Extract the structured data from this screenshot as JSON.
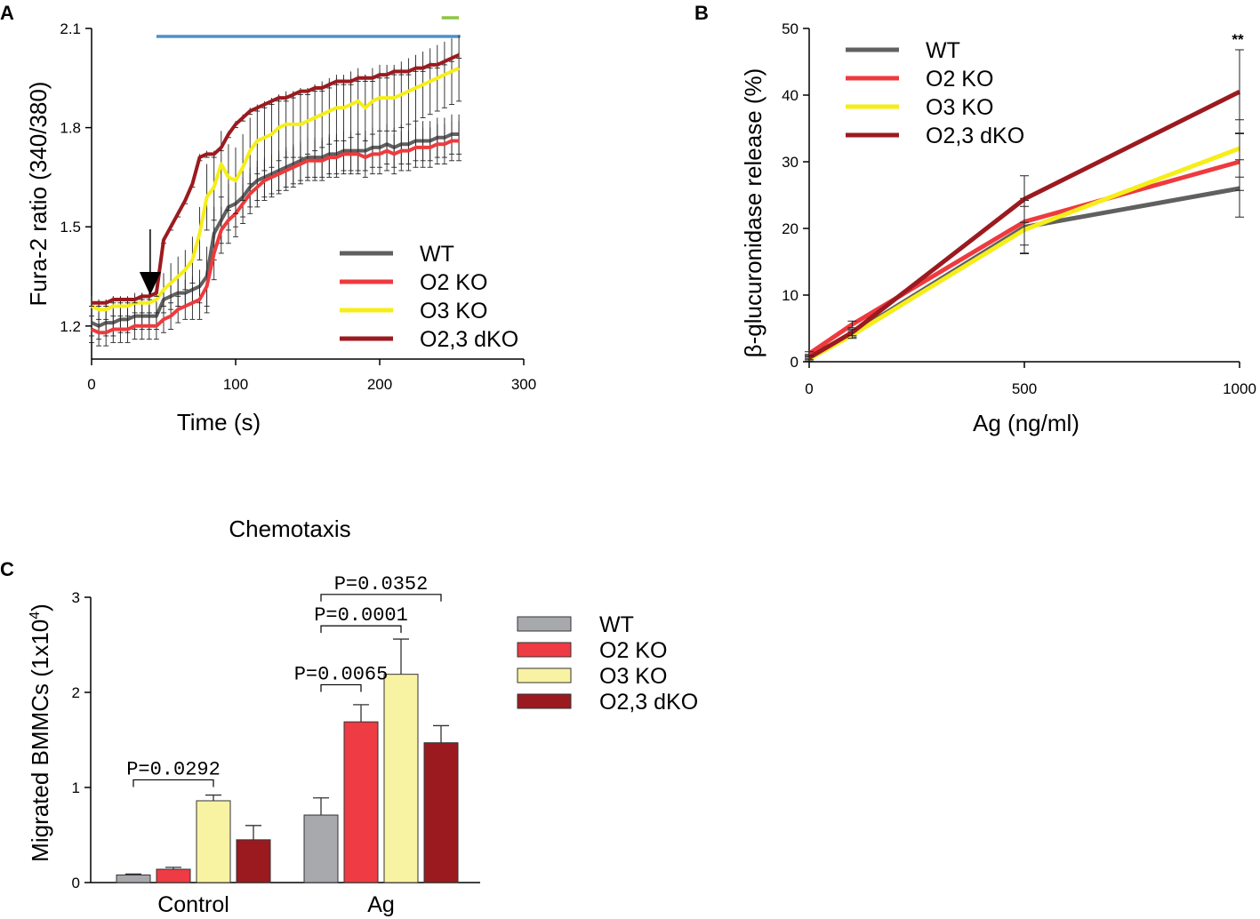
{
  "colors": {
    "wt_line": "#606060",
    "o2_line": "#ee3a3e",
    "o3_line": "#f5ee1a",
    "dko_line": "#9b1a1f",
    "wt_bar": "#a7a9ac",
    "o2_bar": "#ef3b44",
    "o3_bar": "#f8f2a3",
    "dko_bar": "#9b1a1f",
    "blue_bar": "#4e8fcf",
    "green_bar": "#8dc640"
  },
  "chart_data": [
    {
      "panel": "A",
      "type": "line",
      "xlabel": "Time (s)",
      "ylabel": "Fura-2 ratio (340/380)",
      "xlim": [
        0,
        300
      ],
      "ylim": [
        1.1,
        2.1
      ],
      "xticks": [
        "0",
        "100",
        "200",
        "300"
      ],
      "yticks": [
        "1.2",
        "1.5",
        "1.8",
        "2.1"
      ],
      "ytick_values": [
        1.2,
        1.5,
        1.8,
        2.1
      ],
      "xtick_values": [
        0,
        100,
        200,
        300
      ],
      "stimulus_time": 45,
      "blue_bar_range": [
        45,
        256
      ],
      "green_bar_range": [
        243,
        255
      ],
      "legend": [
        "WT",
        "O2 KO",
        "O3 KO",
        "O2,3 dKO"
      ],
      "x": [
        0,
        5,
        10,
        15,
        20,
        25,
        30,
        35,
        40,
        45,
        50,
        55,
        60,
        65,
        70,
        75,
        80,
        85,
        90,
        95,
        100,
        105,
        110,
        115,
        120,
        125,
        130,
        135,
        140,
        145,
        150,
        155,
        160,
        165,
        170,
        175,
        180,
        185,
        190,
        195,
        200,
        205,
        210,
        215,
        220,
        225,
        230,
        235,
        240,
        245,
        250,
        255
      ],
      "series": [
        {
          "name": "WT",
          "values": [
            1.21,
            1.2,
            1.21,
            1.21,
            1.22,
            1.22,
            1.23,
            1.23,
            1.23,
            1.23,
            1.28,
            1.29,
            1.3,
            1.3,
            1.31,
            1.32,
            1.35,
            1.48,
            1.52,
            1.56,
            1.57,
            1.59,
            1.62,
            1.64,
            1.65,
            1.66,
            1.67,
            1.68,
            1.69,
            1.7,
            1.71,
            1.71,
            1.71,
            1.72,
            1.72,
            1.73,
            1.73,
            1.73,
            1.73,
            1.74,
            1.74,
            1.75,
            1.74,
            1.75,
            1.75,
            1.76,
            1.76,
            1.76,
            1.77,
            1.77,
            1.78,
            1.78
          ],
          "errors": [
            0.04,
            0.04,
            0.04,
            0.04,
            0.04,
            0.04,
            0.04,
            0.04,
            0.04,
            0.04,
            0.04,
            0.04,
            0.04,
            0.04,
            0.04,
            0.05,
            0.09,
            0.08,
            0.07,
            0.07,
            0.07,
            0.06,
            0.06,
            0.06,
            0.06,
            0.06,
            0.06,
            0.06,
            0.06,
            0.06,
            0.06,
            0.06,
            0.06,
            0.06,
            0.06,
            0.06,
            0.06,
            0.06,
            0.06,
            0.06,
            0.06,
            0.06,
            0.06,
            0.06,
            0.06,
            0.06,
            0.06,
            0.06,
            0.06,
            0.06,
            0.06,
            0.06
          ]
        },
        {
          "name": "O2 KO",
          "values": [
            1.19,
            1.18,
            1.18,
            1.19,
            1.19,
            1.19,
            1.2,
            1.2,
            1.2,
            1.2,
            1.22,
            1.23,
            1.25,
            1.26,
            1.27,
            1.28,
            1.32,
            1.42,
            1.49,
            1.52,
            1.54,
            1.57,
            1.6,
            1.62,
            1.64,
            1.65,
            1.66,
            1.67,
            1.68,
            1.69,
            1.7,
            1.7,
            1.7,
            1.71,
            1.71,
            1.72,
            1.72,
            1.72,
            1.71,
            1.72,
            1.72,
            1.73,
            1.72,
            1.73,
            1.73,
            1.74,
            1.74,
            1.74,
            1.75,
            1.75,
            1.76,
            1.76
          ],
          "errors": [
            0.04,
            0.04,
            0.04,
            0.04,
            0.04,
            0.04,
            0.04,
            0.04,
            0.04,
            0.04,
            0.04,
            0.04,
            0.04,
            0.04,
            0.05,
            0.06,
            0.08,
            0.08,
            0.07,
            0.07,
            0.07,
            0.06,
            0.06,
            0.06,
            0.06,
            0.06,
            0.06,
            0.06,
            0.06,
            0.06,
            0.06,
            0.06,
            0.06,
            0.06,
            0.06,
            0.06,
            0.06,
            0.06,
            0.06,
            0.06,
            0.06,
            0.06,
            0.06,
            0.06,
            0.06,
            0.06,
            0.06,
            0.06,
            0.06,
            0.06,
            0.06,
            0.06
          ]
        },
        {
          "name": "O3 KO",
          "values": [
            1.26,
            1.25,
            1.25,
            1.26,
            1.26,
            1.26,
            1.27,
            1.27,
            1.27,
            1.28,
            1.31,
            1.33,
            1.35,
            1.37,
            1.4,
            1.48,
            1.59,
            1.62,
            1.69,
            1.65,
            1.64,
            1.68,
            1.73,
            1.76,
            1.77,
            1.78,
            1.8,
            1.81,
            1.81,
            1.81,
            1.82,
            1.83,
            1.84,
            1.85,
            1.86,
            1.86,
            1.87,
            1.88,
            1.86,
            1.88,
            1.89,
            1.89,
            1.89,
            1.9,
            1.91,
            1.92,
            1.93,
            1.94,
            1.95,
            1.96,
            1.97,
            1.98
          ],
          "errors": [
            0.03,
            0.03,
            0.03,
            0.03,
            0.03,
            0.03,
            0.03,
            0.03,
            0.03,
            0.04,
            0.05,
            0.06,
            0.06,
            0.06,
            0.07,
            0.08,
            0.1,
            0.1,
            0.1,
            0.1,
            0.1,
            0.1,
            0.1,
            0.1,
            0.1,
            0.1,
            0.1,
            0.1,
            0.1,
            0.1,
            0.1,
            0.1,
            0.1,
            0.1,
            0.1,
            0.1,
            0.1,
            0.1,
            0.1,
            0.1,
            0.1,
            0.1,
            0.1,
            0.1,
            0.1,
            0.1,
            0.1,
            0.1,
            0.1,
            0.1,
            0.1,
            0.1
          ]
        },
        {
          "name": "O2,3 dKO",
          "values": [
            1.27,
            1.27,
            1.27,
            1.28,
            1.28,
            1.28,
            1.28,
            1.29,
            1.29,
            1.3,
            1.46,
            1.5,
            1.54,
            1.58,
            1.63,
            1.71,
            1.72,
            1.72,
            1.74,
            1.78,
            1.81,
            1.83,
            1.85,
            1.86,
            1.87,
            1.88,
            1.89,
            1.89,
            1.9,
            1.91,
            1.91,
            1.92,
            1.92,
            1.93,
            1.94,
            1.94,
            1.94,
            1.95,
            1.95,
            1.95,
            1.96,
            1.96,
            1.97,
            1.97,
            1.97,
            1.98,
            1.98,
            1.99,
            1.99,
            2.0,
            2.01,
            2.02
          ],
          "errors": [
            0.01,
            0.01,
            0.01,
            0.01,
            0.01,
            0.01,
            0.01,
            0.01,
            0.01,
            0.01,
            0.01,
            0.01,
            0.01,
            0.01,
            0.01,
            0.01,
            0.01,
            0.01,
            0.01,
            0.01,
            0.01,
            0.01,
            0.01,
            0.01,
            0.01,
            0.01,
            0.01,
            0.01,
            0.01,
            0.01,
            0.01,
            0.01,
            0.01,
            0.01,
            0.01,
            0.01,
            0.01,
            0.01,
            0.01,
            0.01,
            0.01,
            0.01,
            0.01,
            0.01,
            0.01,
            0.01,
            0.01,
            0.01,
            0.01,
            0.01,
            0.01,
            0.01
          ]
        }
      ]
    },
    {
      "panel": "B",
      "type": "line",
      "xlabel": "Ag (ng/ml)",
      "ylabel": "β-glucuronidase release (%)",
      "xlim": [
        0,
        1000
      ],
      "ylim": [
        0,
        50
      ],
      "xticks": [
        "0",
        "500",
        "1000"
      ],
      "xtick_values": [
        0,
        500,
        1000
      ],
      "yticks": [
        "0",
        "10",
        "20",
        "30",
        "40",
        "50"
      ],
      "ytick_values": [
        0,
        10,
        20,
        30,
        40,
        50
      ],
      "annotation": "**",
      "legend": [
        "WT",
        "O2 KO",
        "O3 KO",
        "O2,3 dKO"
      ],
      "x": [
        0,
        100,
        500,
        1000
      ],
      "series": [
        {
          "name": "WT",
          "values": [
            0.8,
            4.2,
            20.2,
            26.0
          ],
          "errors": [
            0.3,
            0.5,
            4.0,
            4.3
          ]
        },
        {
          "name": "O2 KO",
          "values": [
            1.2,
            5.6,
            21.0,
            30.0
          ],
          "errors": [
            0.3,
            0.5,
            3.5,
            4.3
          ]
        },
        {
          "name": "O3 KO",
          "values": [
            0.4,
            4.0,
            19.8,
            32.0
          ],
          "errors": [
            0.3,
            0.5,
            3.5,
            4.3
          ]
        },
        {
          "name": "O2,3 dKO",
          "values": [
            0.6,
            4.4,
            24.4,
            40.5
          ],
          "errors": [
            0.3,
            0.5,
            3.5,
            6.3
          ]
        }
      ]
    },
    {
      "panel": "C",
      "type": "bar",
      "title": "Chemotaxis",
      "xlabel": "",
      "ylabel": "Migrated BMMCs (1x10",
      "ylabel_sup": "4",
      "ylabel_end": ")",
      "ylim": [
        0,
        3
      ],
      "yticks": [
        "0",
        "1",
        "2",
        "3"
      ],
      "ytick_values": [
        0,
        1,
        2,
        3
      ],
      "categories": [
        "Control",
        "Ag"
      ],
      "legend": [
        "WT",
        "O2 KO",
        "O3 KO",
        "O2,3 dKO"
      ],
      "series": [
        {
          "name": "WT",
          "values": [
            0.08,
            0.71
          ],
          "errors": [
            0.01,
            0.18
          ]
        },
        {
          "name": "O2 KO",
          "values": [
            0.14,
            1.69
          ],
          "errors": [
            0.02,
            0.18
          ]
        },
        {
          "name": "O3 KO",
          "values": [
            0.86,
            2.19
          ],
          "errors": [
            0.06,
            0.37
          ]
        },
        {
          "name": "O2,3 dKO",
          "values": [
            0.45,
            1.47
          ],
          "errors": [
            0.15,
            0.18
          ]
        }
      ],
      "comparisons": [
        {
          "label": "P=0.0292",
          "category": 0,
          "from": 0,
          "to": 2,
          "level": 1.08
        },
        {
          "label": "P=0.0065",
          "category": 1,
          "from": 0,
          "to": 1,
          "level": 2.08
        },
        {
          "label": "P=0.0001",
          "category": 1,
          "from": 0,
          "to": 2,
          "level": 2.7
        },
        {
          "label": "P=0.0352",
          "category": 1,
          "from": 0,
          "to": 3,
          "level": 3.03
        }
      ]
    }
  ],
  "panel_letters": {
    "a": "A",
    "b": "B",
    "c": "C"
  }
}
